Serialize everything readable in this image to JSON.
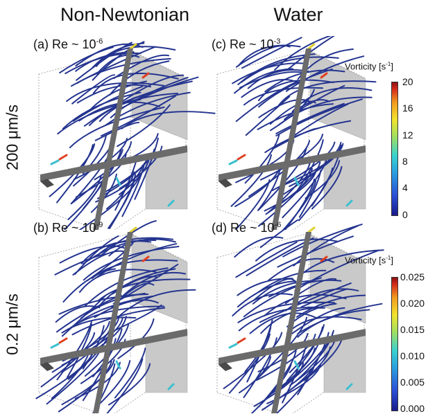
{
  "columns": [
    "Non-Newtonian",
    "Water"
  ],
  "rows": [
    "200 μm/s",
    "0.2 μm/s"
  ],
  "panels": [
    {
      "letter": "(a)",
      "re_prefix": "Re ~ 10",
      "re_exp": "-6"
    },
    {
      "letter": "(c)",
      "re_prefix": "Re ~ 10",
      "re_exp": "-3"
    },
    {
      "letter": "(b)",
      "re_prefix": "Re ~ 10",
      "re_exp": "-9"
    },
    {
      "letter": "(d)",
      "re_prefix": "Re ~ 10",
      "re_exp": "-6"
    }
  ],
  "colorbars": [
    {
      "title": "Vorticity [s",
      "title_exp": "-1",
      "title_end": "]",
      "ticks": [
        "20",
        "16",
        "12",
        "8",
        "4",
        "0"
      ]
    },
    {
      "title": "Vorticity [s",
      "title_exp": "-1",
      "title_end": "]",
      "ticks": [
        "0.025",
        "0.020",
        "0.015",
        "0.010",
        "0.005",
        "0.000"
      ]
    }
  ],
  "colors": {
    "streamline": "#24348f",
    "channel": "#6b6b6b",
    "wall": "#c9c9c9"
  }
}
